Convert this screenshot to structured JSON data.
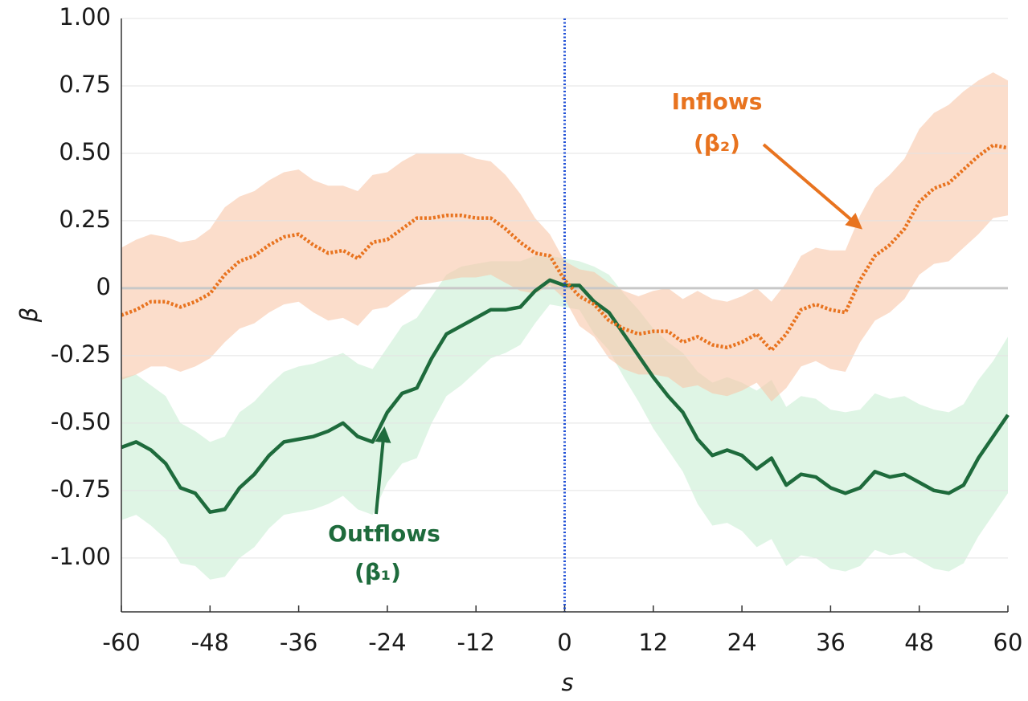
{
  "chart_data": {
    "type": "line",
    "x_label": "s",
    "y_label": "β",
    "x": [
      -60,
      -58,
      -56,
      -54,
      -52,
      -50,
      -48,
      -46,
      -44,
      -42,
      -40,
      -38,
      -36,
      -34,
      -32,
      -30,
      -28,
      -26,
      -24,
      -22,
      -20,
      -18,
      -16,
      -14,
      -12,
      -10,
      -8,
      -6,
      -4,
      -2,
      0,
      2,
      4,
      6,
      8,
      10,
      12,
      14,
      16,
      18,
      20,
      22,
      24,
      26,
      28,
      30,
      32,
      34,
      36,
      38,
      40,
      42,
      44,
      46,
      48,
      50,
      52,
      54,
      56,
      58,
      60
    ],
    "series": [
      {
        "name": "Outflows",
        "annotation": "(β₁)",
        "color": "#1e6b3c",
        "band_color": "#c9efd3",
        "dash": false,
        "values": [
          -0.59,
          -0.57,
          -0.6,
          -0.65,
          -0.74,
          -0.76,
          -0.83,
          -0.82,
          -0.74,
          -0.69,
          -0.62,
          -0.57,
          -0.56,
          -0.55,
          -0.53,
          -0.5,
          -0.55,
          -0.57,
          -0.46,
          -0.39,
          -0.37,
          -0.26,
          -0.17,
          -0.14,
          -0.11,
          -0.08,
          -0.08,
          -0.07,
          -0.01,
          0.03,
          0.01,
          0.01,
          -0.05,
          -0.09,
          -0.17,
          -0.25,
          -0.33,
          -0.4,
          -0.46,
          -0.56,
          -0.62,
          -0.6,
          -0.62,
          -0.67,
          -0.63,
          -0.73,
          -0.69,
          -0.7,
          -0.74,
          -0.76,
          -0.74,
          -0.68,
          -0.7,
          -0.69,
          -0.72,
          -0.75,
          -0.76,
          -0.73,
          -0.63,
          -0.55,
          -0.47
        ],
        "upper": [
          -0.33,
          -0.32,
          -0.36,
          -0.4,
          -0.5,
          -0.53,
          -0.57,
          -0.55,
          -0.46,
          -0.42,
          -0.36,
          -0.31,
          -0.29,
          -0.28,
          -0.26,
          -0.24,
          -0.28,
          -0.3,
          -0.22,
          -0.14,
          -0.11,
          -0.03,
          0.05,
          0.08,
          0.09,
          0.1,
          0.1,
          0.1,
          0.12,
          0.12,
          0.11,
          0.1,
          0.08,
          0.05,
          -0.02,
          -0.08,
          -0.15,
          -0.2,
          -0.24,
          -0.31,
          -0.35,
          -0.33,
          -0.35,
          -0.38,
          -0.34,
          -0.44,
          -0.4,
          -0.41,
          -0.45,
          -0.46,
          -0.45,
          -0.39,
          -0.41,
          -0.4,
          -0.43,
          -0.45,
          -0.46,
          -0.43,
          -0.34,
          -0.27,
          -0.18
        ],
        "lower": [
          -0.86,
          -0.84,
          -0.88,
          -0.93,
          -1.02,
          -1.03,
          -1.08,
          -1.07,
          -1.0,
          -0.96,
          -0.89,
          -0.84,
          -0.83,
          -0.82,
          -0.8,
          -0.77,
          -0.82,
          -0.84,
          -0.72,
          -0.65,
          -0.63,
          -0.5,
          -0.4,
          -0.36,
          -0.31,
          -0.26,
          -0.24,
          -0.21,
          -0.13,
          -0.06,
          -0.07,
          -0.08,
          -0.17,
          -0.23,
          -0.33,
          -0.42,
          -0.52,
          -0.6,
          -0.68,
          -0.8,
          -0.88,
          -0.87,
          -0.9,
          -0.96,
          -0.93,
          -1.03,
          -0.99,
          -1.0,
          -1.04,
          -1.05,
          -1.03,
          -0.97,
          -0.99,
          -0.98,
          -1.01,
          -1.04,
          -1.05,
          -1.02,
          -0.92,
          -0.84,
          -0.76
        ]
      },
      {
        "name": "Inflows",
        "annotation": "(β₂)",
        "color": "#e8731f",
        "band_color": "#f8c6a8",
        "dash": true,
        "values": [
          -0.1,
          -0.08,
          -0.05,
          -0.05,
          -0.07,
          -0.05,
          -0.02,
          0.05,
          0.1,
          0.12,
          0.16,
          0.19,
          0.2,
          0.16,
          0.13,
          0.14,
          0.11,
          0.17,
          0.18,
          0.22,
          0.26,
          0.26,
          0.27,
          0.27,
          0.26,
          0.26,
          0.22,
          0.17,
          0.13,
          0.12,
          0.03,
          -0.03,
          -0.06,
          -0.12,
          -0.15,
          -0.17,
          -0.16,
          -0.16,
          -0.2,
          -0.18,
          -0.21,
          -0.22,
          -0.2,
          -0.17,
          -0.23,
          -0.17,
          -0.08,
          -0.06,
          -0.08,
          -0.09,
          0.03,
          0.12,
          0.16,
          0.22,
          0.32,
          0.37,
          0.39,
          0.44,
          0.49,
          0.53,
          0.52
        ],
        "upper": [
          0.15,
          0.18,
          0.2,
          0.19,
          0.17,
          0.18,
          0.22,
          0.3,
          0.34,
          0.36,
          0.4,
          0.43,
          0.44,
          0.4,
          0.38,
          0.38,
          0.36,
          0.42,
          0.43,
          0.47,
          0.5,
          0.5,
          0.5,
          0.5,
          0.48,
          0.47,
          0.42,
          0.35,
          0.26,
          0.2,
          0.1,
          0.07,
          0.06,
          0.02,
          -0.01,
          -0.03,
          -0.01,
          0.0,
          -0.04,
          -0.01,
          -0.04,
          -0.05,
          -0.03,
          0.0,
          -0.05,
          0.02,
          0.12,
          0.15,
          0.14,
          0.14,
          0.27,
          0.37,
          0.42,
          0.48,
          0.59,
          0.65,
          0.68,
          0.73,
          0.77,
          0.8,
          0.77
        ],
        "lower": [
          -0.34,
          -0.32,
          -0.29,
          -0.29,
          -0.31,
          -0.29,
          -0.26,
          -0.2,
          -0.15,
          -0.13,
          -0.09,
          -0.06,
          -0.05,
          -0.09,
          -0.12,
          -0.11,
          -0.14,
          -0.08,
          -0.07,
          -0.03,
          0.01,
          0.02,
          0.03,
          0.04,
          0.04,
          0.05,
          0.02,
          -0.01,
          -0.02,
          0.01,
          -0.04,
          -0.14,
          -0.18,
          -0.26,
          -0.3,
          -0.32,
          -0.32,
          -0.33,
          -0.37,
          -0.36,
          -0.39,
          -0.4,
          -0.38,
          -0.35,
          -0.42,
          -0.37,
          -0.29,
          -0.27,
          -0.3,
          -0.31,
          -0.2,
          -0.12,
          -0.09,
          -0.04,
          0.05,
          0.09,
          0.1,
          0.15,
          0.2,
          0.26,
          0.27
        ]
      }
    ],
    "xlim": [
      -60,
      60
    ],
    "ylim": [
      -1.2,
      1.0
    ],
    "xticks": [
      -60,
      -48,
      -36,
      -24,
      -12,
      0,
      12,
      24,
      36,
      48,
      60
    ],
    "yticks": [
      {
        "value": 1.0,
        "label": "1.00"
      },
      0.75,
      {
        "value": 0.5,
        "label": "0.50"
      },
      0.25,
      0,
      -0.25,
      {
        "value": -0.5,
        "label": "-0.50"
      },
      -0.75,
      {
        "value": -1.0,
        "label": "-1.00"
      }
    ],
    "grid": true,
    "hline": 0,
    "vline": 0
  }
}
